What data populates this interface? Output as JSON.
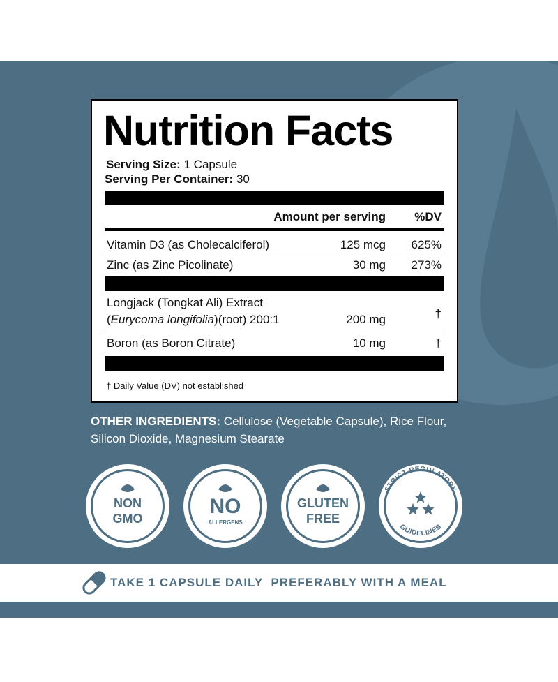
{
  "panel": {
    "title": "Nutrition Facts",
    "serving_size": {
      "label": "Serving Size:",
      "value": "1 Capsule"
    },
    "serving_per_container": {
      "label": "Serving Per Container:",
      "value": "30"
    },
    "header": {
      "amount": "Amount per serving",
      "dv": "%DV"
    },
    "rows": [
      {
        "name": "Vitamin D3 (as Cholecalciferol)",
        "amount": "125 mcg",
        "dv": "625%"
      },
      {
        "name": "Zinc (as Zinc Picolinate)",
        "amount": "30 mg",
        "dv": "273%"
      },
      {
        "name": "Longjack (Tongkat Ali) Extract",
        "name_line2": [
          "(",
          "Eurycoma longifolia",
          ")(root) 200:1"
        ],
        "amount": "200 mg",
        "dv": "†"
      },
      {
        "name": "Boron (as Boron Citrate)",
        "amount": "10 mg",
        "dv": "†"
      }
    ],
    "footnote": "† Daily Value (DV) not established"
  },
  "other_ingredients": {
    "label": "OTHER INGREDIENTS:",
    "text": "Cellulose (Vegetable Capsule), Rice Flour, Silicon Dioxide, Magnesium Stearate"
  },
  "badges": [
    [
      "NON",
      "GMO"
    ],
    [
      "NO",
      "ALLERGENS"
    ],
    [
      "GLUTEN",
      "FREE"
    ],
    [
      "STRICT REGULATORY",
      "GUIDELINES"
    ]
  ],
  "banner": "TAKE 1 CAPSULE DAILY  PREFERABLY WITH A MEAL"
}
